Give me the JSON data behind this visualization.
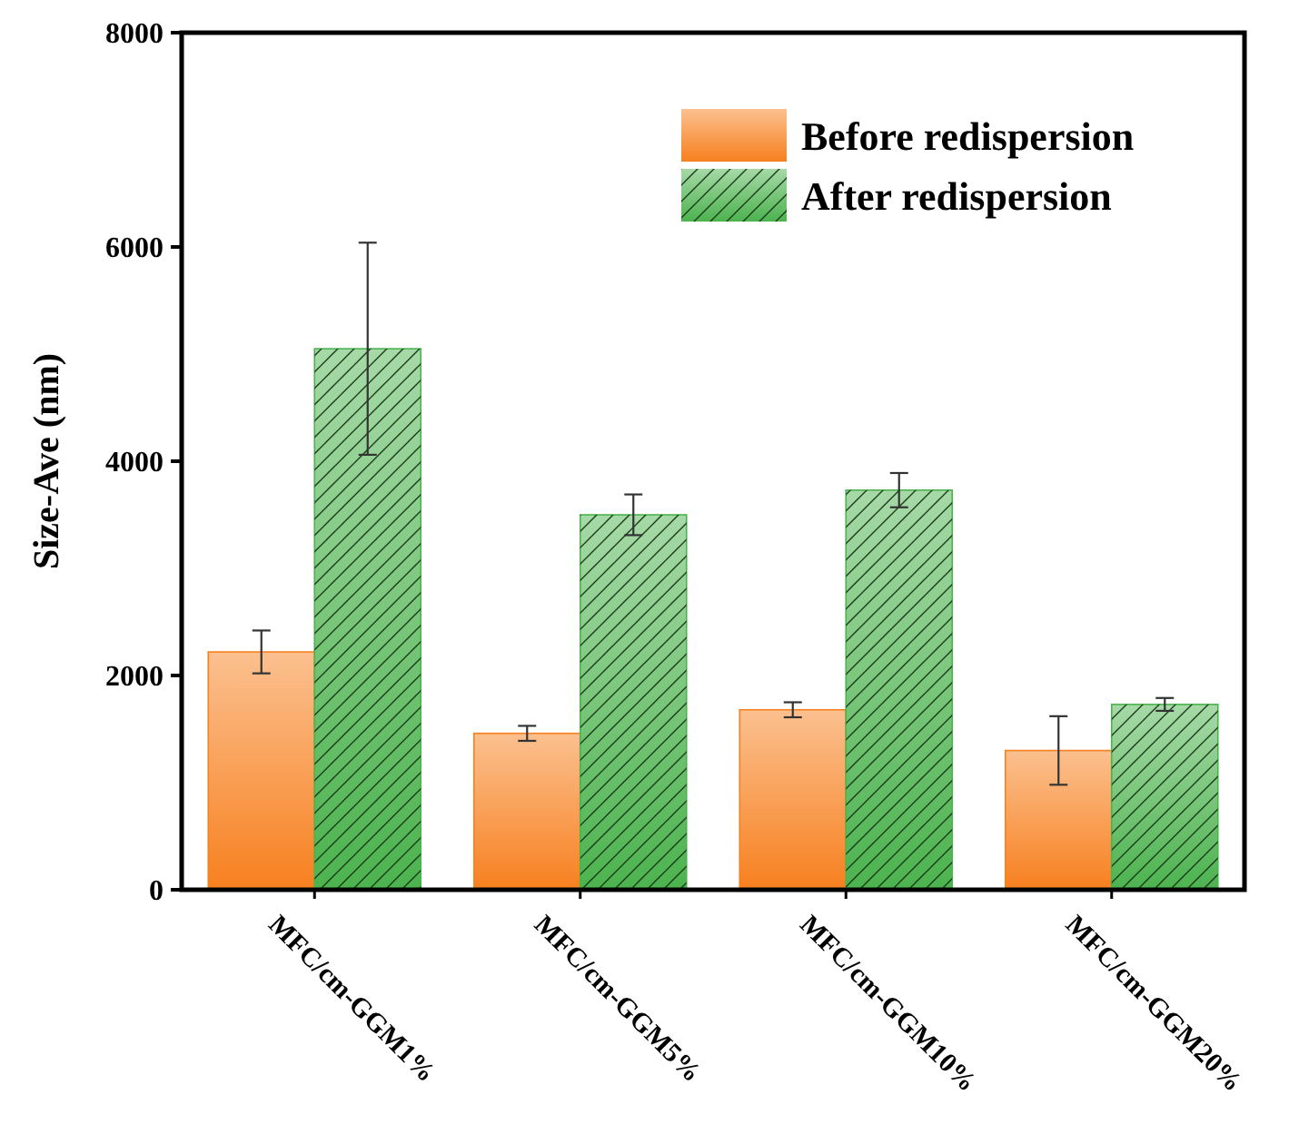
{
  "chart_data": {
    "type": "bar",
    "ylabel": "Size-Ave (nm)",
    "categories": [
      "MFC/cm-GGM1%",
      "MFC/cm-GGM5%",
      "MFC/cm-GGM10%",
      "MFC/cm-GGM20%"
    ],
    "series": [
      {
        "name": "Before redispersion",
        "color": "#f7801f",
        "values": [
          2220,
          1460,
          1680,
          1300
        ],
        "errors": [
          200,
          70,
          70,
          320
        ]
      },
      {
        "name": "After redispersion",
        "color": "#4cb34e",
        "values": [
          5050,
          3500,
          3730,
          1730
        ],
        "errors": [
          990,
          190,
          160,
          60
        ]
      }
    ],
    "ylim": [
      0,
      8000
    ],
    "yticks": [
      0,
      2000,
      4000,
      6000,
      8000
    ],
    "legend": "top right"
  }
}
